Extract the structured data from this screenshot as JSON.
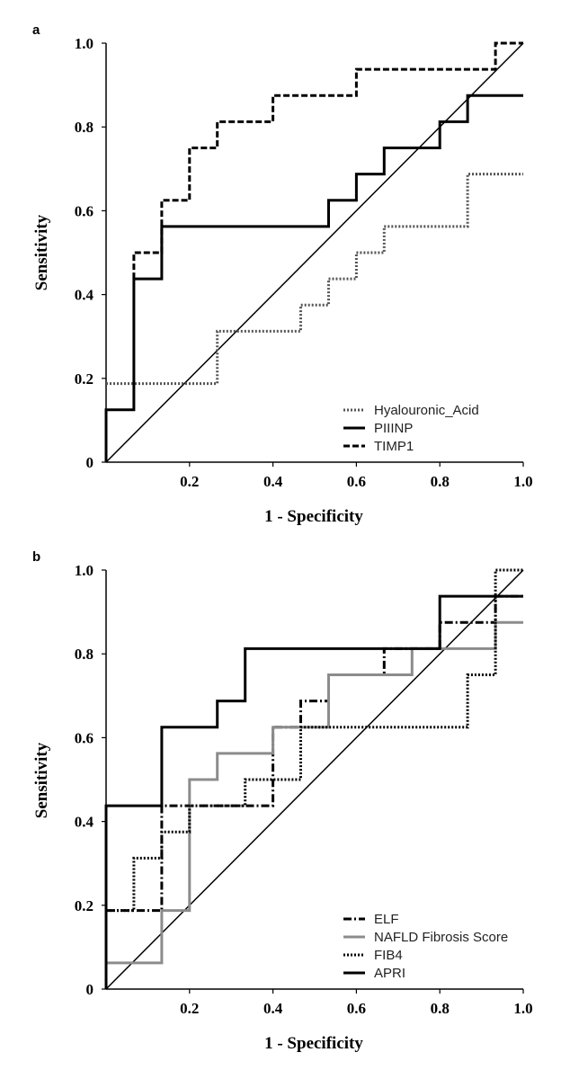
{
  "chart_data": [
    {
      "type": "line",
      "panel": "a",
      "xlabel": "1 - Specificity",
      "ylabel": "Sensitivity",
      "xlim": [
        0,
        1
      ],
      "ylim": [
        0,
        1
      ],
      "xticks": [
        "0.2",
        "0.4",
        "0.6",
        "0.8",
        "1.0"
      ],
      "yticks": [
        "0",
        "0.2",
        "0.4",
        "0.6",
        "0.8",
        "1.0"
      ],
      "legend_position": "bottom-right",
      "grid": false,
      "reference_line": [
        [
          0,
          0
        ],
        [
          1,
          1
        ]
      ],
      "series": [
        {
          "name": "Hyalouronic_Acid",
          "style": "dotted",
          "color": "#555555",
          "points": [
            [
              0,
              0.1875
            ],
            [
              0.2667,
              0.1875
            ],
            [
              0.2667,
              0.3125
            ],
            [
              0.4667,
              0.3125
            ],
            [
              0.4667,
              0.375
            ],
            [
              0.5333,
              0.375
            ],
            [
              0.5333,
              0.4375
            ],
            [
              0.6,
              0.4375
            ],
            [
              0.6,
              0.5
            ],
            [
              0.6667,
              0.5
            ],
            [
              0.6667,
              0.5625
            ],
            [
              0.8667,
              0.5625
            ],
            [
              0.8667,
              0.6875
            ],
            [
              1,
              0.6875
            ]
          ]
        },
        {
          "name": "PIIINP",
          "style": "solid",
          "color": "#000000",
          "points": [
            [
              0,
              0
            ],
            [
              0,
              0.125
            ],
            [
              0.0667,
              0.125
            ],
            [
              0.0667,
              0.4375
            ],
            [
              0.1333,
              0.4375
            ],
            [
              0.1333,
              0.5625
            ],
            [
              0.5333,
              0.5625
            ],
            [
              0.5333,
              0.625
            ],
            [
              0.6,
              0.625
            ],
            [
              0.6,
              0.6875
            ],
            [
              0.6667,
              0.6875
            ],
            [
              0.6667,
              0.75
            ],
            [
              0.8,
              0.75
            ],
            [
              0.8,
              0.8125
            ],
            [
              0.8667,
              0.8125
            ],
            [
              0.8667,
              0.875
            ],
            [
              1,
              0.875
            ]
          ]
        },
        {
          "name": "TIMP1",
          "style": "dashed",
          "color": "#000000",
          "points": [
            [
              0.0667,
              0.4375
            ],
            [
              0.0667,
              0.5
            ],
            [
              0.1333,
              0.5
            ],
            [
              0.1333,
              0.625
            ],
            [
              0.2,
              0.625
            ],
            [
              0.2,
              0.75
            ],
            [
              0.2667,
              0.75
            ],
            [
              0.2667,
              0.8125
            ],
            [
              0.4,
              0.8125
            ],
            [
              0.4,
              0.875
            ],
            [
              0.6,
              0.875
            ],
            [
              0.6,
              0.9375
            ],
            [
              0.9333,
              0.9375
            ],
            [
              0.9333,
              1
            ],
            [
              1,
              1
            ]
          ]
        }
      ]
    },
    {
      "type": "line",
      "panel": "b",
      "xlabel": "1 - Specificity",
      "ylabel": "Sensitivity",
      "xlim": [
        0,
        1
      ],
      "ylim": [
        0,
        1
      ],
      "xticks": [
        "0.2",
        "0.4",
        "0.6",
        "0.8",
        "1.0"
      ],
      "yticks": [
        "0",
        "0.2",
        "0.4",
        "0.6",
        "0.8",
        "1.0"
      ],
      "legend_position": "bottom-right",
      "grid": false,
      "reference_line": [
        [
          0,
          0
        ],
        [
          1,
          1
        ]
      ],
      "series": [
        {
          "name": "ELF",
          "style": "dashdot",
          "color": "#000000",
          "points": [
            [
              0,
              0.1875
            ],
            [
              0.1333,
              0.1875
            ],
            [
              0.1333,
              0.4375
            ],
            [
              0.4,
              0.4375
            ],
            [
              0.4,
              0.625
            ],
            [
              0.4667,
              0.625
            ],
            [
              0.4667,
              0.6875
            ],
            [
              0.5333,
              0.6875
            ],
            [
              0.5333,
              0.75
            ],
            [
              0.6667,
              0.75
            ],
            [
              0.6667,
              0.8125
            ],
            [
              0.8,
              0.8125
            ],
            [
              0.8,
              0.875
            ],
            [
              0.9333,
              0.875
            ],
            [
              0.9333,
              0.9375
            ],
            [
              1,
              0.9375
            ]
          ]
        },
        {
          "name": "NAFLD Fibrosis Score",
          "style": "solid",
          "color": "#8c8c8c",
          "points": [
            [
              0,
              0
            ],
            [
              0,
              0.0625
            ],
            [
              0.1333,
              0.0625
            ],
            [
              0.1333,
              0.1875
            ],
            [
              0.2,
              0.1875
            ],
            [
              0.2,
              0.5
            ],
            [
              0.2667,
              0.5
            ],
            [
              0.2667,
              0.5625
            ],
            [
              0.4,
              0.5625
            ],
            [
              0.4,
              0.625
            ],
            [
              0.5333,
              0.625
            ],
            [
              0.5333,
              0.75
            ],
            [
              0.7333,
              0.75
            ],
            [
              0.7333,
              0.8125
            ],
            [
              0.9333,
              0.8125
            ],
            [
              0.9333,
              0.875
            ],
            [
              1,
              0.875
            ]
          ]
        },
        {
          "name": "FIB4",
          "style": "dotted",
          "color": "#000000",
          "points": [
            [
              0,
              0.1875
            ],
            [
              0.0667,
              0.1875
            ],
            [
              0.0667,
              0.3125
            ],
            [
              0.1333,
              0.3125
            ],
            [
              0.1333,
              0.375
            ],
            [
              0.2,
              0.375
            ],
            [
              0.2,
              0.4375
            ],
            [
              0.3333,
              0.4375
            ],
            [
              0.3333,
              0.5
            ],
            [
              0.4667,
              0.5
            ],
            [
              0.4667,
              0.625
            ],
            [
              0.8667,
              0.625
            ],
            [
              0.8667,
              0.75
            ],
            [
              0.9333,
              0.75
            ],
            [
              0.9333,
              1
            ],
            [
              1,
              1
            ]
          ]
        },
        {
          "name": "APRI",
          "style": "solid",
          "color": "#000000",
          "points": [
            [
              0,
              0
            ],
            [
              0,
              0.4375
            ],
            [
              0.1333,
              0.4375
            ],
            [
              0.1333,
              0.625
            ],
            [
              0.2667,
              0.625
            ],
            [
              0.2667,
              0.6875
            ],
            [
              0.3333,
              0.6875
            ],
            [
              0.3333,
              0.8125
            ],
            [
              0.8,
              0.8125
            ],
            [
              0.8,
              0.9375
            ],
            [
              1,
              0.9375
            ]
          ]
        }
      ]
    }
  ]
}
